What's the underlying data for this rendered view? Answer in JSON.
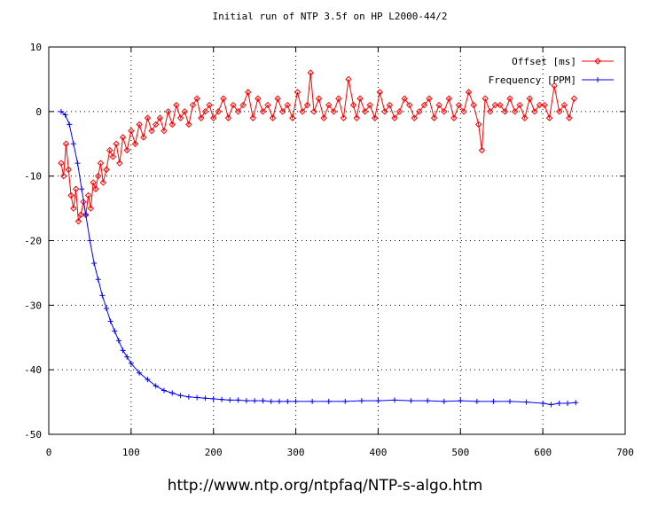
{
  "caption": "http://www.ntp.org/ntpfaq/NTP-s-algo.htm",
  "chart_data": {
    "type": "line",
    "title": "Initial run of NTP 3.5f on HP L2000-44/2",
    "xlabel": "",
    "ylabel": "",
    "xlim": [
      0,
      700
    ],
    "ylim": [
      -50,
      10
    ],
    "xticks": [
      "0",
      "100",
      "200",
      "300",
      "400",
      "500",
      "600",
      "700"
    ],
    "yticks": [
      "10",
      "0",
      "-10",
      "-20",
      "-30",
      "-40",
      "-50"
    ],
    "grid": "dotted",
    "legend_position": "top-right",
    "series": [
      {
        "name": "Offset [ms]",
        "color": "#ff0000",
        "marker": "diamond",
        "x": [
          15,
          18,
          21,
          24,
          27,
          30,
          33,
          36,
          39,
          42,
          45,
          48,
          51,
          54,
          57,
          60,
          63,
          66,
          70,
          74,
          78,
          82,
          86,
          90,
          95,
          100,
          105,
          110,
          115,
          120,
          125,
          130,
          135,
          140,
          145,
          150,
          155,
          160,
          165,
          170,
          175,
          180,
          185,
          190,
          195,
          200,
          206,
          212,
          218,
          224,
          230,
          236,
          242,
          248,
          254,
          260,
          266,
          272,
          278,
          284,
          290,
          296,
          302,
          308,
          314,
          318,
          322,
          328,
          334,
          340,
          346,
          352,
          358,
          364,
          370,
          374,
          378,
          384,
          390,
          396,
          402,
          408,
          414,
          420,
          426,
          432,
          438,
          444,
          450,
          456,
          462,
          468,
          474,
          480,
          486,
          492,
          498,
          504,
          510,
          516,
          522,
          526,
          530,
          536,
          542,
          548,
          554,
          560,
          566,
          572,
          578,
          584,
          590,
          596,
          602,
          608,
          614,
          620,
          626,
          632,
          638
        ],
        "values": [
          -8,
          -10,
          -5,
          -9,
          -13,
          -15,
          -12,
          -17,
          -16,
          -14,
          -16,
          -13,
          -15,
          -11,
          -12,
          -10,
          -8,
          -11,
          -9,
          -6,
          -7,
          -5,
          -8,
          -4,
          -6,
          -3,
          -5,
          -2,
          -4,
          -1,
          -3,
          -2,
          -1,
          -3,
          0,
          -2,
          1,
          -1,
          0,
          -2,
          1,
          2,
          -1,
          0,
          1,
          -1,
          0,
          2,
          -1,
          1,
          0,
          1,
          3,
          -1,
          2,
          0,
          1,
          -1,
          2,
          0,
          1,
          -1,
          3,
          0,
          1,
          6,
          0,
          2,
          -1,
          1,
          0,
          2,
          -1,
          5,
          1,
          -1,
          2,
          0,
          1,
          -1,
          3,
          0,
          1,
          -1,
          0,
          2,
          1,
          -1,
          0,
          1,
          2,
          -1,
          1,
          0,
          2,
          -1,
          1,
          0,
          3,
          1,
          -2,
          -6,
          2,
          0,
          1,
          1,
          0,
          2,
          0,
          1,
          -1,
          2,
          0,
          1,
          1,
          -1,
          4,
          0,
          1,
          -1,
          2
        ]
      },
      {
        "name": "Frequency [PPM]",
        "color": "#0000ff",
        "marker": "plus",
        "x": [
          15,
          20,
          25,
          30,
          35,
          40,
          45,
          50,
          55,
          60,
          65,
          70,
          75,
          80,
          85,
          90,
          95,
          100,
          110,
          120,
          130,
          140,
          150,
          160,
          170,
          180,
          190,
          200,
          210,
          220,
          230,
          240,
          250,
          260,
          270,
          280,
          290,
          300,
          320,
          340,
          360,
          380,
          400,
          420,
          440,
          460,
          480,
          500,
          520,
          540,
          560,
          580,
          600,
          610,
          620,
          630,
          640
        ],
        "values": [
          0,
          -0.5,
          -2,
          -5,
          -8,
          -12,
          -16,
          -20,
          -23.5,
          -26,
          -28.5,
          -30.5,
          -32.5,
          -34,
          -35.5,
          -37,
          -38,
          -39,
          -40.5,
          -41.5,
          -42.5,
          -43.2,
          -43.6,
          -44,
          -44.2,
          -44.3,
          -44.4,
          -44.5,
          -44.6,
          -44.7,
          -44.7,
          -44.8,
          -44.8,
          -44.8,
          -44.9,
          -44.9,
          -44.9,
          -44.9,
          -44.9,
          -44.9,
          -44.9,
          -44.8,
          -44.8,
          -44.7,
          -44.8,
          -44.8,
          -44.9,
          -44.8,
          -44.9,
          -44.9,
          -44.9,
          -45,
          -45.2,
          -45.4,
          -45.2,
          -45.2,
          -45.1
        ]
      }
    ]
  }
}
